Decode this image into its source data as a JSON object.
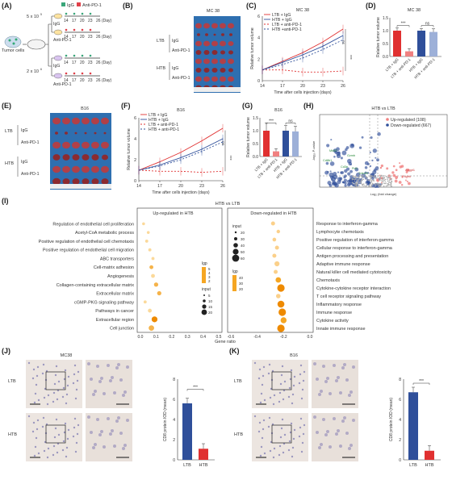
{
  "panel_labels": [
    "(A)",
    "(B)",
    "(C)",
    "(D)",
    "(E)",
    "(F)",
    "(G)",
    "(H)",
    "(I)",
    "(J)",
    "(K)"
  ],
  "A": {
    "legend_igg": "IgG",
    "legend_anti": "Anti-PD-1",
    "cells_top": "5 x 10",
    "cells_top_exp": "5",
    "cells_bottom": "2 x 10",
    "cells_bottom_exp": "6",
    "tumor_cells": "Tumor cells",
    "days": [
      "14",
      "17",
      "20",
      "23",
      "26"
    ],
    "day_unit": "(Day)",
    "treatments": [
      "IgG",
      "Anti-PD-1",
      "IgG",
      "Anti-PD-1"
    ]
  },
  "B": {
    "title": "MC 38",
    "groups": [
      "LTB",
      "HTB"
    ],
    "rows": [
      "IgG",
      "Anti-PD-1",
      "IgG",
      "Anti-PD-1"
    ]
  },
  "C": {
    "title": "MC 38",
    "legend": [
      "LTB + IgG",
      "HTB + IgG",
      "LTB + anti-PD-1",
      "HTB +anti-PD-1"
    ],
    "ylabel": "Relative tumor volume",
    "xlabel": "Time after cells injection (days)",
    "xticks": [
      "14",
      "17",
      "20",
      "23",
      "26"
    ],
    "yticks": [
      "0",
      "2",
      "4",
      "6"
    ],
    "sig": [
      "***",
      "ns"
    ]
  },
  "D": {
    "title": "MC 38",
    "ylabel": "Relative tumor volume",
    "yticks": [
      "0.0",
      "0.5",
      "1.0",
      "1.5"
    ],
    "categories": [
      "LTB + IgG",
      "LTB + anti-PD-1",
      "HTB + IgG",
      "HTB + anti-PD-1"
    ],
    "sig": [
      "***",
      "ns"
    ]
  },
  "E": {
    "title": "B16",
    "groups": [
      "LTB",
      "HTB"
    ],
    "rows": [
      "IgG",
      "Anti-PD-1",
      "IgG",
      "Anti-PD-1"
    ]
  },
  "F": {
    "title": "B16",
    "legend": [
      "LTB + IgG",
      "HTB + IgG",
      "LTB + anti-PD-1",
      "HTB + anti-PD-1"
    ],
    "ylabel": "Relative tumor volume",
    "xlabel": "Time after cells injection (days)",
    "xticks": [
      "14",
      "17",
      "20",
      "23",
      "26"
    ],
    "yticks": [
      "0",
      "2",
      "4",
      "6"
    ],
    "sig": [
      "***",
      "ns"
    ]
  },
  "G": {
    "title": "B16",
    "ylabel": "Relative tumor volume",
    "yticks": [
      "0.0",
      "0.5",
      "1.0",
      "1.5"
    ],
    "categories": [
      "LTB + IgG",
      "LTB + anti-PD-1",
      "HTB + IgG",
      "HTB + anti-PD-1"
    ],
    "sig": [
      "***",
      "ns"
    ]
  },
  "H": {
    "title": "HTB vs LTB",
    "legend": [
      "Up-regulated (108)",
      "Down-regulated (667)"
    ],
    "xlabel": "Log₂ (fold change)",
    "ylabel": "-log₁₀ P-value",
    "genes": [
      "Mki67",
      "Cd8b1",
      "Gzmb",
      "Cd3e",
      "Prf1",
      "Tnfrsf9",
      "Angpt1",
      "Pdgfrb"
    ]
  },
  "I": {
    "title": "HTB vs LTB",
    "up_title": "Up-regulated in HTB",
    "down_title": "Down-regulated in HTB",
    "up_terms": [
      "Regulation of endothelial cell proliferation",
      "Acetyl-CoA metabolic process",
      "Positive regulation of endothelial cell chemotaxis",
      "Positive regulation of endothelial cell migration",
      "ABC transporters",
      "Cell-matrix adhesion",
      "Angiogenesis",
      "Collagen-containing extracellular matrix",
      "Extracellular matrix",
      "cGMP-PKG signaling pathway",
      "Pathways in cancer",
      "Extracellular region",
      "Cell junction"
    ],
    "down_terms": [
      "Response to interferon-gamma",
      "Lymphocyte chemotaxis",
      "Positive regulation of interferon-gamma",
      "Cellular response to interferon-gamma",
      "Antigen processing and presentation",
      "Adaptive immune response",
      "Natural killer cell mediated cytotoxicity",
      "Chemotaxis",
      "Cytokine-cytokine receptor interaction",
      "T cell receptor signaling pathway",
      "Inflammatory response",
      "Immune response",
      "Cytokine activity",
      "Innate immune response"
    ],
    "up_xticks": [
      "0.0",
      "0.1",
      "0.2",
      "0.3",
      "0.4",
      "0.5"
    ],
    "down_xticks": [
      "-0.6",
      "-0.4",
      "-0.2",
      "0.0"
    ],
    "xlabel": "Gene ratio",
    "legend_lgp": "lgp",
    "legend_input": "input",
    "up_lgp_ticks": [
      "5",
      "4",
      "3",
      "2"
    ],
    "up_input_ticks": [
      "5",
      "10",
      "15",
      "20"
    ],
    "down_input_ticks": [
      "20",
      "30",
      "40",
      "50",
      "60"
    ],
    "down_lgp_ticks": [
      "40",
      "30",
      "20"
    ]
  },
  "J": {
    "title": "MC38",
    "rows": [
      "LTB",
      "HTB"
    ],
    "ylabel": "CD8 protein IOD (mean)",
    "yticks": [
      "0",
      "2",
      "4",
      "6",
      "8"
    ],
    "categories": [
      "LTB",
      "HTB"
    ],
    "sig": "***"
  },
  "K": {
    "title": "B16",
    "rows": [
      "LTB",
      "HTB"
    ],
    "ylabel": "CD8 protein IOD (mean)",
    "yticks": [
      "0",
      "2",
      "4",
      "6",
      "8"
    ],
    "categories": [
      "LTB",
      "HTB"
    ],
    "sig": "***"
  },
  "colors": {
    "red": "#e03030",
    "blue": "#2f4f9a",
    "lightblue": "#9db0d8",
    "pink": "#f08080",
    "orange": "#f5a623"
  },
  "chart_data": [
    {
      "type": "line",
      "title": "MC 38",
      "x": [
        14,
        17,
        20,
        23,
        26
      ],
      "xlabel": "Time after cells injection (days)",
      "ylabel": "Relative tumor volume",
      "ylim": [
        0,
        6
      ],
      "series": [
        {
          "name": "LTB + IgG",
          "values": [
            1.0,
            1.8,
            2.6,
            3.6,
            4.8
          ]
        },
        {
          "name": "HTB + IgG",
          "values": [
            1.0,
            1.7,
            2.4,
            3.2,
            4.2
          ]
        },
        {
          "name": "LTB + anti-PD-1",
          "values": [
            1.0,
            1.0,
            0.8,
            0.8,
            0.9
          ]
        },
        {
          "name": "HTB +anti-PD-1",
          "values": [
            1.0,
            1.5,
            2.1,
            2.9,
            3.8
          ]
        }
      ]
    },
    {
      "type": "bar",
      "title": "MC 38",
      "categories": [
        "LTB + IgG",
        "LTB + anti-PD-1",
        "HTB + IgG",
        "HTB + anti-PD-1"
      ],
      "values": [
        1.0,
        0.2,
        1.0,
        0.95
      ],
      "ylabel": "Relative tumor volume",
      "ylim": [
        0,
        1.5
      ]
    },
    {
      "type": "line",
      "title": "B16",
      "x": [
        14,
        17,
        20,
        23,
        26
      ],
      "xlabel": "Time after cells injection (days)",
      "ylabel": "Relative tumor volume",
      "ylim": [
        0,
        6
      ],
      "series": [
        {
          "name": "LTB + IgG",
          "values": [
            1.0,
            1.8,
            2.7,
            3.8,
            5.0
          ]
        },
        {
          "name": "HTB + IgG",
          "values": [
            1.0,
            1.5,
            2.2,
            3.0,
            4.0
          ]
        },
        {
          "name": "LTB + anti-PD-1",
          "values": [
            1.0,
            0.9,
            0.9,
            0.8,
            0.9
          ]
        },
        {
          "name": "HTB + anti-PD-1",
          "values": [
            1.0,
            1.4,
            2.0,
            2.8,
            3.7
          ]
        }
      ]
    },
    {
      "type": "bar",
      "title": "B16",
      "categories": [
        "LTB + IgG",
        "LTB + anti-PD-1",
        "HTB + IgG",
        "HTB + anti-PD-1"
      ],
      "values": [
        1.0,
        0.2,
        1.0,
        0.97
      ],
      "ylabel": "Relative tumor volume",
      "ylim": [
        0,
        1.5
      ]
    },
    {
      "type": "bar",
      "title": "MC38",
      "categories": [
        "LTB",
        "HTB"
      ],
      "values": [
        5.6,
        1.1
      ],
      "ylabel": "CD8 protein IOD (mean)",
      "ylim": [
        0,
        8
      ]
    },
    {
      "type": "bar",
      "title": "B16",
      "categories": [
        "LTB",
        "HTB"
      ],
      "values": [
        6.7,
        0.9
      ],
      "ylabel": "CD8 protein IOD (mean)",
      "ylim": [
        0,
        8
      ]
    },
    {
      "type": "scatter",
      "title": "HTB vs LTB",
      "up_ratio": [
        0.02,
        0.05,
        0.04,
        0.06,
        0.08,
        0.07,
        0.08,
        0.1,
        0.12,
        0.03,
        0.06,
        0.09,
        0.07
      ],
      "up_lgp": [
        2,
        2,
        2,
        2,
        2,
        3,
        2,
        3,
        3,
        2,
        2,
        5,
        3
      ],
      "up_input": [
        5,
        5,
        6,
        6,
        6,
        10,
        10,
        12,
        12,
        6,
        10,
        20,
        18
      ],
      "down_ratio": [
        -0.28,
        -0.24,
        -0.27,
        -0.25,
        -0.27,
        -0.25,
        -0.26,
        -0.24,
        -0.22,
        -0.24,
        -0.22,
        -0.21,
        -0.2,
        -0.22
      ],
      "down_lgp": [
        20,
        20,
        20,
        20,
        25,
        25,
        22,
        30,
        40,
        25,
        40,
        42,
        35,
        40
      ],
      "down_input": [
        25,
        20,
        22,
        25,
        25,
        35,
        25,
        40,
        60,
        30,
        55,
        60,
        45,
        60
      ]
    }
  ]
}
